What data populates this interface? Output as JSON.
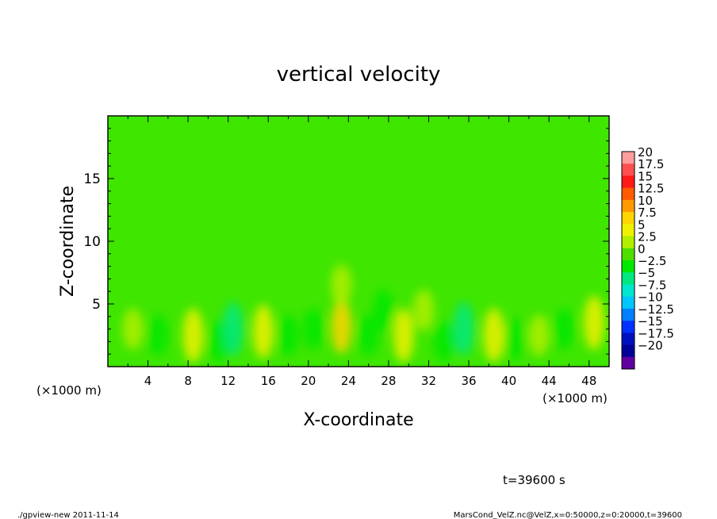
{
  "chart_data": {
    "type": "heatmap",
    "title": "vertical velocity",
    "xlabel": "X-coordinate",
    "ylabel": "Z-coordinate",
    "x_unit_left": "(×1000 m)",
    "x_unit_right": "(×1000 m)",
    "xlim": [
      0,
      50
    ],
    "ylim": [
      0,
      20
    ],
    "x_ticks": [
      4,
      8,
      12,
      16,
      20,
      24,
      28,
      32,
      36,
      40,
      44,
      48
    ],
    "y_ticks": [
      5,
      10,
      15
    ],
    "colorbar": {
      "levels": [
        "20",
        "17.5",
        "15",
        "12.5",
        "10",
        "7.5",
        "5",
        "2.5",
        "0",
        "−2.5",
        "−5",
        "−7.5",
        "−10",
        "−12.5",
        "−15",
        "−17.5",
        "−20"
      ],
      "colors": [
        "#ff9d9d",
        "#ff4f4f",
        "#ff1a1a",
        "#ff5a00",
        "#ff9a00",
        "#ffd400",
        "#f0f000",
        "#b2ee00",
        "#4ede00",
        "#00e800",
        "#00e87f",
        "#00e6cf",
        "#00c6ff",
        "#0080ff",
        "#0030ff",
        "#0010c0",
        "#00009a",
        "#6000a0"
      ]
    },
    "blobs_note_free_values": true,
    "field": [
      {
        "x": 2.5,
        "z": 3.0,
        "w": 1.5
      },
      {
        "x": 5.0,
        "z": 2.5,
        "w": -2.5
      },
      {
        "x": 8.5,
        "z": 2.5,
        "w": 5.0
      },
      {
        "x": 11.0,
        "z": 2.0,
        "w": -3.0
      },
      {
        "x": 12.5,
        "z": 3.0,
        "w": -5.0
      },
      {
        "x": 15.5,
        "z": 2.8,
        "w": 5.0
      },
      {
        "x": 18.0,
        "z": 2.5,
        "w": -2.5
      },
      {
        "x": 20.5,
        "z": 3.0,
        "w": -4.0
      },
      {
        "x": 23.3,
        "z": 3.2,
        "w": 7.5
      },
      {
        "x": 26.0,
        "z": 2.5,
        "w": -4.0
      },
      {
        "x": 27.5,
        "z": 4.5,
        "w": -2.5
      },
      {
        "x": 29.5,
        "z": 2.5,
        "w": 5.0
      },
      {
        "x": 31.5,
        "z": 4.5,
        "w": 2.5
      },
      {
        "x": 33.5,
        "z": 2.0,
        "w": -2.5
      },
      {
        "x": 35.5,
        "z": 3.0,
        "w": -5.0
      },
      {
        "x": 38.5,
        "z": 2.5,
        "w": 5.0
      },
      {
        "x": 40.5,
        "z": 2.2,
        "w": -2.5
      },
      {
        "x": 43.0,
        "z": 2.5,
        "w": 2.5
      },
      {
        "x": 45.5,
        "z": 3.0,
        "w": -4.0
      },
      {
        "x": 48.5,
        "z": 3.5,
        "w": 5.0
      },
      {
        "x": 23.3,
        "z": 6.5,
        "w": 2.5
      }
    ]
  },
  "annotations": {
    "time": "t=39600 s",
    "footer_left": "./gpview-new   2011-11-14",
    "footer_right": "MarsCond_VelZ.nc@VelZ,x=0:50000,z=0:20000,t=39600"
  }
}
